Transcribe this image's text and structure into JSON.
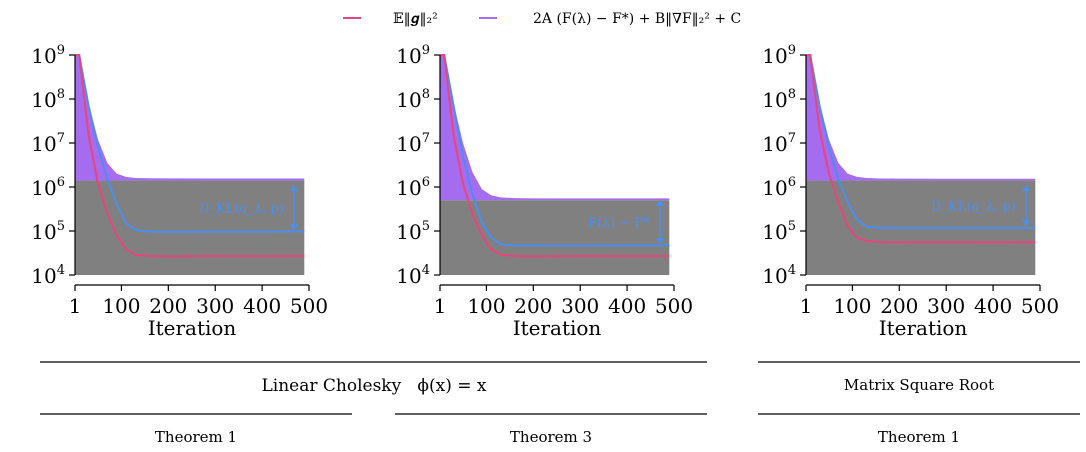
{
  "legend": {
    "items": [
      {
        "label": "𝔼‖𝒈‖₂²",
        "color": "#e8457a"
      },
      {
        "label": "2A (F(λ) − F*) + B‖∇F‖₂² + C",
        "color": "#a56cf0"
      }
    ]
  },
  "captions": {
    "group_row": [
      "Linear Cholesky   ϕ(x) = x",
      "Matrix Square Root"
    ],
    "theorem_row": [
      "Theorem 1",
      "Theorem 3",
      "Theorem 1"
    ]
  },
  "colors": {
    "bound_fill": "#a56cf0",
    "floor_fill": "#808080",
    "bound_line": "#4b8ef0",
    "grad_line": "#e8457a",
    "annotation": "#4b8ef0"
  },
  "chart_data": [
    {
      "type": "area",
      "xlabel": "Iteration",
      "ylabel": "",
      "xscale": "linear",
      "yscale": "log",
      "xlim": [
        1,
        500
      ],
      "ylim": [
        10000,
        1000000000
      ],
      "x_ticks": [
        "1",
        "100",
        "200",
        "300",
        "400",
        "500"
      ],
      "y_ticks": [
        "10^4",
        "10^5",
        "10^6",
        "10^7",
        "10^8",
        "10^9"
      ],
      "annotation": "D_KL(q_λ, p)",
      "series": [
        {
          "x": [
            1,
            10,
            30,
            50,
            70,
            90,
            110,
            130,
            160,
            200,
            300,
            400,
            490
          ],
          "y": [
            1000000000,
            1000000000,
            80000000,
            12000000,
            3500000,
            2000000,
            1700000,
            1600000,
            1580000,
            1570000,
            1560000,
            1560000,
            1560000
          ]
        },
        {
          "x": [
            1,
            500
          ],
          "y": [
            1400000,
            1400000
          ]
        },
        {
          "x": [
            1,
            10,
            30,
            50,
            70,
            90,
            110,
            130,
            160,
            200,
            300,
            400,
            490
          ],
          "y": [
            1000000000,
            1000000000,
            70000000,
            8000000,
            1500000,
            400000,
            150000,
            105000,
            97000,
            96000,
            97000,
            97000,
            98000
          ]
        },
        {
          "x": [
            1,
            10,
            30,
            50,
            70,
            90,
            110,
            130,
            160,
            200,
            300,
            400,
            490
          ],
          "y": [
            1000000000,
            1000000000,
            15000000,
            1200000,
            250000,
            80000,
            38000,
            29000,
            27000,
            26500,
            27000,
            26800,
            27000
          ]
        }
      ]
    },
    {
      "type": "area",
      "xlabel": "Iteration",
      "ylabel": "",
      "xscale": "linear",
      "yscale": "log",
      "xlim": [
        1,
        500
      ],
      "ylim": [
        10000,
        1000000000
      ],
      "x_ticks": [
        "1",
        "100",
        "200",
        "300",
        "400",
        "500"
      ],
      "y_ticks": [
        "10^4",
        "10^5",
        "10^6",
        "10^7",
        "10^8",
        "10^9"
      ],
      "annotation": "F(λ) − F*",
      "series": [
        {
          "x": [
            1,
            10,
            30,
            50,
            70,
            90,
            110,
            130,
            160,
            200,
            300,
            400,
            490
          ],
          "y": [
            1000000000,
            1000000000,
            80000000,
            10000000,
            2200000,
            900000,
            650000,
            580000,
            560000,
            550000,
            550000,
            550000,
            550000
          ]
        },
        {
          "x": [
            1,
            500
          ],
          "y": [
            500000,
            500000
          ]
        },
        {
          "x": [
            1,
            10,
            30,
            50,
            70,
            90,
            110,
            130,
            160,
            200,
            300,
            400,
            490
          ],
          "y": [
            1000000000,
            1000000000,
            70000000,
            5000000,
            700000,
            160000,
            70000,
            50000,
            47000,
            47000,
            46500,
            47000,
            47000
          ]
        },
        {
          "x": [
            1,
            10,
            30,
            50,
            70,
            90,
            110,
            130,
            160,
            200,
            300,
            400,
            490
          ],
          "y": [
            1000000000,
            1000000000,
            15000000,
            1200000,
            250000,
            80000,
            38000,
            29000,
            27000,
            26500,
            27000,
            26800,
            27000
          ]
        }
      ]
    },
    {
      "type": "area",
      "xlabel": "Iteration",
      "ylabel": "",
      "xscale": "linear",
      "yscale": "log",
      "xlim": [
        1,
        500
      ],
      "ylim": [
        10000,
        1000000000
      ],
      "x_ticks": [
        "1",
        "100",
        "200",
        "300",
        "400",
        "500"
      ],
      "y_ticks": [
        "10^4",
        "10^5",
        "10^6",
        "10^7",
        "10^8",
        "10^9"
      ],
      "annotation": "D_KL(q_λ, p)",
      "series": [
        {
          "x": [
            1,
            10,
            30,
            50,
            70,
            90,
            110,
            130,
            160,
            200,
            300,
            400,
            490
          ],
          "y": [
            1000000000,
            1000000000,
            80000000,
            12000000,
            3500000,
            2000000,
            1700000,
            1600000,
            1560000,
            1550000,
            1540000,
            1540000,
            1540000
          ]
        },
        {
          "x": [
            1,
            500
          ],
          "y": [
            1400000,
            1400000
          ]
        },
        {
          "x": [
            1,
            10,
            30,
            50,
            70,
            90,
            110,
            130,
            160,
            200,
            300,
            400,
            490
          ],
          "y": [
            1000000000,
            1000000000,
            70000000,
            8000000,
            1500000,
            450000,
            180000,
            125000,
            118000,
            117000,
            117000,
            117000,
            117000
          ]
        },
        {
          "x": [
            1,
            10,
            30,
            50,
            70,
            90,
            110,
            130,
            160,
            200,
            300,
            400,
            490
          ],
          "y": [
            1000000000,
            1000000000,
            20000000,
            2000000,
            450000,
            130000,
            70000,
            60000,
            56000,
            55000,
            56000,
            55000,
            56000
          ]
        }
      ]
    }
  ]
}
